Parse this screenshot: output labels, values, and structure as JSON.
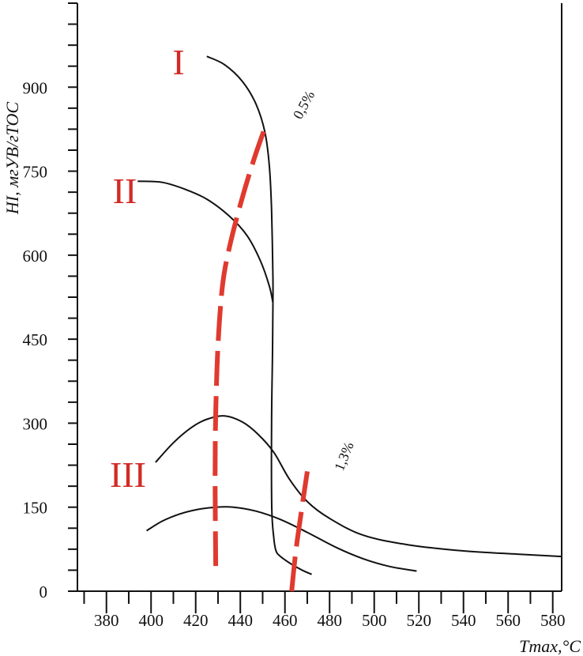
{
  "chart_data": {
    "type": "line",
    "title": "",
    "xlabel": "Tmax,°C",
    "ylabel": "HI, мгУВ/гTOC",
    "xlim": [
      367,
      584
    ],
    "ylim": [
      0,
      1050
    ],
    "x_ticks": [
      380,
      400,
      420,
      440,
      460,
      480,
      500,
      520,
      540,
      560,
      580
    ],
    "y_ticks": [
      0,
      150,
      300,
      450,
      600,
      750,
      900
    ],
    "grid": false,
    "legend": "none",
    "series": [
      {
        "points": [
          [
            425,
            955
          ],
          [
            433,
            940
          ],
          [
            441,
            910
          ],
          [
            447,
            870
          ],
          [
            451,
            820
          ],
          [
            453,
            760
          ],
          [
            454,
            680
          ],
          [
            454.6,
            560
          ],
          [
            454.6,
            515
          ]
        ]
      },
      {
        "points": [
          [
            394,
            732
          ],
          [
            405,
            730
          ],
          [
            415,
            718
          ],
          [
            425,
            700
          ],
          [
            435,
            670
          ],
          [
            443,
            635
          ],
          [
            449,
            590
          ],
          [
            453,
            545
          ],
          [
            454.6,
            515
          ]
        ]
      },
      {
        "points": [
          [
            454.6,
            515
          ],
          [
            454.4,
            420
          ],
          [
            454,
            300
          ],
          [
            454.1,
            150
          ],
          [
            455,
            95
          ],
          [
            456,
            72
          ],
          [
            458,
            62
          ],
          [
            463,
            48
          ],
          [
            468,
            37
          ],
          [
            472,
            30
          ]
        ]
      },
      {
        "points": [
          [
            402,
            230
          ],
          [
            410,
            265
          ],
          [
            418,
            292
          ],
          [
            425,
            307
          ],
          [
            433,
            313
          ],
          [
            441,
            302
          ],
          [
            448,
            280
          ],
          [
            455,
            248
          ],
          [
            462,
            200
          ],
          [
            470,
            160
          ],
          [
            480,
            130
          ],
          [
            495,
            100
          ],
          [
            515,
            83
          ],
          [
            540,
            72
          ],
          [
            565,
            66
          ],
          [
            584,
            62
          ]
        ]
      },
      {
        "points": [
          [
            398,
            108
          ],
          [
            405,
            125
          ],
          [
            413,
            138
          ],
          [
            421,
            146
          ],
          [
            429,
            150
          ],
          [
            437,
            150
          ],
          [
            447,
            143
          ],
          [
            458,
            128
          ],
          [
            470,
            105
          ],
          [
            483,
            78
          ],
          [
            495,
            58
          ],
          [
            507,
            44
          ],
          [
            519,
            36
          ]
        ]
      }
    ],
    "isolines": [
      {
        "label": "0,5%",
        "color": "#e03a2f",
        "points": [
          [
            429,
            45
          ],
          [
            428.7,
            200
          ],
          [
            429,
            320
          ],
          [
            430,
            440
          ],
          [
            432,
            545
          ],
          [
            435,
            612
          ],
          [
            440,
            690
          ],
          [
            446,
            770
          ],
          [
            452,
            838
          ]
        ]
      },
      {
        "label": "1,3%",
        "color": "#e03a2f",
        "points": [
          [
            463,
            0
          ],
          [
            465,
            75
          ],
          [
            468,
            160
          ],
          [
            470,
            214
          ]
        ]
      }
    ],
    "annotations": [
      {
        "text": "I",
        "color": "#d22b25"
      },
      {
        "text": "II",
        "color": "#d22b25"
      },
      {
        "text": "III",
        "color": "#d22b25"
      }
    ]
  }
}
